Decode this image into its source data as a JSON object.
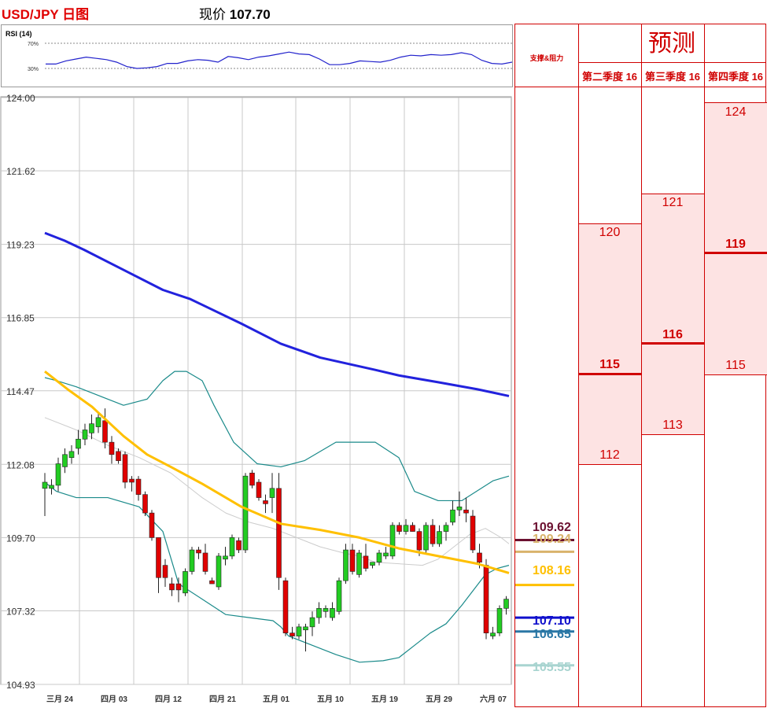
{
  "header": {
    "pair_title": "USD/JPY 日图",
    "price_label": "现价",
    "price_value": "107.70"
  },
  "rsi": {
    "title": "RSI (14)",
    "upper_label": "70%",
    "lower_label": "30%",
    "color": "#2222cc"
  },
  "chart_data": {
    "type": "candlestick",
    "y_ticks": [
      "124.00",
      "121.62",
      "119.23",
      "116.85",
      "114.47",
      "112.08",
      "109.70",
      "107.32",
      "104.93"
    ],
    "ylim": [
      104.93,
      124.0
    ],
    "x_tick_labels": [
      "三月 24",
      "四月 03",
      "四月 12",
      "四月 21",
      "五月 01",
      "五月 10",
      "五月 19",
      "五月 29",
      "六月 07"
    ],
    "candles": [
      {
        "o": 111.3,
        "h": 111.8,
        "l": 110.4,
        "c": 111.5
      },
      {
        "o": 111.3,
        "h": 111.6,
        "l": 111.1,
        "c": 111.4
      },
      {
        "o": 111.4,
        "h": 112.3,
        "l": 111.2,
        "c": 112.1
      },
      {
        "o": 112.0,
        "h": 112.6,
        "l": 111.8,
        "c": 112.4
      },
      {
        "o": 112.3,
        "h": 112.7,
        "l": 112.1,
        "c": 112.5
      },
      {
        "o": 112.6,
        "h": 113.2,
        "l": 112.4,
        "c": 112.9
      },
      {
        "o": 112.9,
        "h": 113.4,
        "l": 112.7,
        "c": 113.2
      },
      {
        "o": 113.1,
        "h": 113.7,
        "l": 112.9,
        "c": 113.4
      },
      {
        "o": 113.3,
        "h": 113.8,
        "l": 113.1,
        "c": 113.6
      },
      {
        "o": 113.5,
        "h": 113.9,
        "l": 112.6,
        "c": 112.8
      },
      {
        "o": 112.8,
        "h": 113.0,
        "l": 112.1,
        "c": 112.4
      },
      {
        "o": 112.5,
        "h": 112.6,
        "l": 112.1,
        "c": 112.2
      },
      {
        "o": 112.4,
        "h": 112.5,
        "l": 111.3,
        "c": 111.5
      },
      {
        "o": 111.6,
        "h": 111.7,
        "l": 111.2,
        "c": 111.5
      },
      {
        "o": 111.6,
        "h": 111.7,
        "l": 110.9,
        "c": 111.1
      },
      {
        "o": 111.1,
        "h": 111.2,
        "l": 110.4,
        "c": 110.5
      },
      {
        "o": 110.5,
        "h": 110.6,
        "l": 109.6,
        "c": 109.7
      },
      {
        "o": 109.7,
        "h": 109.7,
        "l": 107.9,
        "c": 108.4
      },
      {
        "o": 108.8,
        "h": 109.0,
        "l": 108.1,
        "c": 108.4
      },
      {
        "o": 108.2,
        "h": 108.4,
        "l": 107.8,
        "c": 108.0
      },
      {
        "o": 108.2,
        "h": 108.4,
        "l": 107.6,
        "c": 108.0
      },
      {
        "o": 107.9,
        "h": 108.7,
        "l": 107.8,
        "c": 108.6
      },
      {
        "o": 108.6,
        "h": 109.4,
        "l": 108.5,
        "c": 109.3
      },
      {
        "o": 109.3,
        "h": 109.4,
        "l": 109.0,
        "c": 109.2
      },
      {
        "o": 109.2,
        "h": 109.5,
        "l": 108.5,
        "c": 108.6
      },
      {
        "o": 108.3,
        "h": 108.4,
        "l": 108.2,
        "c": 108.2
      },
      {
        "o": 108.1,
        "h": 109.2,
        "l": 108.0,
        "c": 109.1
      },
      {
        "o": 109.0,
        "h": 109.4,
        "l": 108.8,
        "c": 109.1
      },
      {
        "o": 109.1,
        "h": 109.8,
        "l": 109.0,
        "c": 109.7
      },
      {
        "o": 109.6,
        "h": 109.7,
        "l": 109.2,
        "c": 109.3
      },
      {
        "o": 109.3,
        "h": 111.8,
        "l": 109.2,
        "c": 111.7
      },
      {
        "o": 111.8,
        "h": 111.9,
        "l": 111.3,
        "c": 111.4
      },
      {
        "o": 111.5,
        "h": 111.6,
        "l": 110.9,
        "c": 111.0
      },
      {
        "o": 110.9,
        "h": 111.1,
        "l": 110.5,
        "c": 110.8
      },
      {
        "o": 111.0,
        "h": 111.8,
        "l": 110.5,
        "c": 111.3
      },
      {
        "o": 111.3,
        "h": 111.8,
        "l": 108.0,
        "c": 108.4
      },
      {
        "o": 108.3,
        "h": 108.4,
        "l": 106.5,
        "c": 106.6
      },
      {
        "o": 106.6,
        "h": 106.8,
        "l": 106.4,
        "c": 106.5
      },
      {
        "o": 106.5,
        "h": 106.9,
        "l": 106.4,
        "c": 106.8
      },
      {
        "o": 106.7,
        "h": 106.9,
        "l": 106.0,
        "c": 106.8
      },
      {
        "o": 106.8,
        "h": 107.3,
        "l": 106.5,
        "c": 107.1
      },
      {
        "o": 107.1,
        "h": 107.6,
        "l": 106.9,
        "c": 107.4
      },
      {
        "o": 107.3,
        "h": 107.5,
        "l": 107.1,
        "c": 107.4
      },
      {
        "o": 107.1,
        "h": 107.6,
        "l": 107.0,
        "c": 107.4
      },
      {
        "o": 107.3,
        "h": 108.4,
        "l": 107.2,
        "c": 108.3
      },
      {
        "o": 108.3,
        "h": 109.5,
        "l": 108.2,
        "c": 109.3
      },
      {
        "o": 109.3,
        "h": 109.5,
        "l": 108.5,
        "c": 108.6
      },
      {
        "o": 108.5,
        "h": 109.3,
        "l": 108.4,
        "c": 109.2
      },
      {
        "o": 109.1,
        "h": 109.5,
        "l": 108.6,
        "c": 108.7
      },
      {
        "o": 108.8,
        "h": 108.9,
        "l": 108.7,
        "c": 108.9
      },
      {
        "o": 108.9,
        "h": 109.3,
        "l": 108.8,
        "c": 109.2
      },
      {
        "o": 109.1,
        "h": 109.4,
        "l": 109.0,
        "c": 109.2
      },
      {
        "o": 109.1,
        "h": 110.2,
        "l": 109.0,
        "c": 110.1
      },
      {
        "o": 110.1,
        "h": 110.2,
        "l": 109.8,
        "c": 109.9
      },
      {
        "o": 109.9,
        "h": 110.3,
        "l": 109.8,
        "c": 110.1
      },
      {
        "o": 110.1,
        "h": 110.2,
        "l": 109.9,
        "c": 109.9
      },
      {
        "o": 109.9,
        "h": 110.0,
        "l": 109.1,
        "c": 109.3
      },
      {
        "o": 109.3,
        "h": 110.2,
        "l": 109.2,
        "c": 110.1
      },
      {
        "o": 110.1,
        "h": 110.3,
        "l": 109.4,
        "c": 109.5
      },
      {
        "o": 109.5,
        "h": 110.1,
        "l": 109.4,
        "c": 109.9
      },
      {
        "o": 109.9,
        "h": 110.2,
        "l": 109.6,
        "c": 110.1
      },
      {
        "o": 110.2,
        "h": 110.9,
        "l": 110.1,
        "c": 110.6
      },
      {
        "o": 110.6,
        "h": 111.2,
        "l": 110.4,
        "c": 110.7
      },
      {
        "o": 110.6,
        "h": 111.0,
        "l": 110.2,
        "c": 110.5
      },
      {
        "o": 110.4,
        "h": 110.6,
        "l": 109.2,
        "c": 109.3
      },
      {
        "o": 109.2,
        "h": 109.5,
        "l": 108.7,
        "c": 108.9
      },
      {
        "o": 108.8,
        "h": 109.0,
        "l": 106.4,
        "c": 106.6
      },
      {
        "o": 106.5,
        "h": 106.8,
        "l": 106.4,
        "c": 106.6
      },
      {
        "o": 106.6,
        "h": 107.5,
        "l": 106.5,
        "c": 107.4
      },
      {
        "o": 107.4,
        "h": 107.8,
        "l": 107.2,
        "c": 107.7
      }
    ],
    "ma_blue": {
      "color": "#2222dd",
      "x": [
        0,
        25,
        50,
        100,
        150,
        185,
        250,
        300,
        350,
        420,
        450,
        500,
        550,
        590
      ],
      "y": [
        119.6,
        119.35,
        119.05,
        118.4,
        117.75,
        117.45,
        116.65,
        116.0,
        115.55,
        115.15,
        114.97,
        114.75,
        114.52,
        114.3
      ]
    },
    "ma_yellow": {
      "color": "#ffc000",
      "x": [
        0,
        30,
        60,
        100,
        130,
        160,
        200,
        250,
        300,
        350,
        400,
        450,
        500,
        550,
        590
      ],
      "y": [
        115.1,
        114.5,
        113.95,
        113.0,
        112.4,
        112.0,
        111.45,
        110.7,
        110.15,
        109.95,
        109.7,
        109.35,
        109.1,
        108.85,
        108.55
      ]
    },
    "bb_upper": {
      "color": "#1a8a8a",
      "x": [
        0,
        15,
        40,
        70,
        100,
        130,
        150,
        165,
        180,
        200,
        215,
        240,
        270,
        300,
        330,
        370,
        420,
        450,
        470,
        500,
        530,
        570,
        590
      ],
      "y": [
        114.9,
        114.8,
        114.6,
        114.3,
        114.0,
        114.2,
        114.8,
        115.1,
        115.1,
        114.8,
        114.0,
        112.8,
        112.1,
        112.0,
        112.2,
        112.8,
        112.8,
        112.3,
        111.2,
        110.9,
        110.9,
        111.55,
        111.7
      ]
    },
    "bb_lower": {
      "color": "#1a8a8a",
      "x": [
        0,
        15,
        40,
        80,
        120,
        150,
        170,
        200,
        230,
        260,
        290,
        300,
        310,
        340,
        370,
        400,
        430,
        450,
        470,
        490,
        510,
        530,
        560,
        575,
        590
      ],
      "y": [
        111.5,
        111.2,
        111.0,
        111.0,
        110.7,
        109.9,
        108.2,
        107.7,
        107.2,
        107.1,
        107.0,
        106.8,
        106.5,
        106.2,
        105.9,
        105.65,
        105.7,
        105.8,
        106.2,
        106.6,
        106.9,
        107.5,
        108.5,
        108.7,
        108.8
      ]
    },
    "bb_mid": {
      "color": "#cccccc",
      "x": [
        0,
        40,
        80,
        120,
        160,
        200,
        230,
        260,
        290,
        320,
        350,
        380,
        400,
        420,
        450,
        480,
        500,
        540,
        560,
        580,
        590
      ],
      "y": [
        113.6,
        113.2,
        112.7,
        112.3,
        111.8,
        111.0,
        110.5,
        110.2,
        110.0,
        109.7,
        109.4,
        109.2,
        109.1,
        108.9,
        108.85,
        108.8,
        109.0,
        109.8,
        110.0,
        109.7,
        109.5
      ]
    },
    "levels": [
      {
        "value": 109.62,
        "label": "109.62",
        "color": "#6b1030"
      },
      {
        "value": 109.24,
        "label": "109.24",
        "color": "#d9b36b"
      },
      {
        "value": 108.16,
        "label": "108.16",
        "color": "#ffc000"
      },
      {
        "value": 107.1,
        "label": "107.10",
        "color": "#1010cc"
      },
      {
        "value": 106.65,
        "label": "106.65",
        "color": "#2a77a5"
      },
      {
        "value": 105.55,
        "label": "105.55",
        "color": "#a8d4d0"
      }
    ],
    "rsi_values": [
      37,
      37,
      42,
      45,
      48,
      46,
      44,
      40,
      33,
      30,
      31,
      33,
      38,
      38,
      42,
      44,
      43,
      40,
      49,
      47,
      44,
      48,
      50,
      53,
      56,
      53,
      52,
      45,
      36,
      36,
      38,
      42,
      41,
      40,
      43,
      48,
      51,
      50,
      52,
      51,
      52,
      55,
      52,
      43,
      38,
      37,
      40
    ]
  },
  "forecast": {
    "title": "预测",
    "sr_header": "支撑&阻力",
    "columns": [
      {
        "header": "第二季度 16",
        "high": "120",
        "mid": "115",
        "low": "112"
      },
      {
        "header": "第三季度 16",
        "high": "121",
        "mid": "116",
        "low": "113"
      },
      {
        "header": "第四季度 16",
        "high": "124",
        "mid": "119",
        "low": "115"
      }
    ]
  }
}
